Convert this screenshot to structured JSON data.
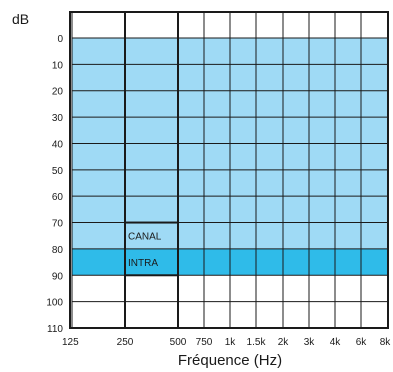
{
  "chart_data": {
    "type": "area",
    "ylabel": "dB",
    "xlabel": "Fréquence (Hz)",
    "y_inverted": true,
    "ylim": [
      110,
      0
    ],
    "y_ticks": [
      0,
      10,
      20,
      30,
      40,
      50,
      60,
      70,
      80,
      90,
      100,
      110
    ],
    "x_ticks": [
      "125",
      "250",
      "500",
      "750",
      "1k",
      "1.5k",
      "2k",
      "3k",
      "4k",
      "6k",
      "8k"
    ],
    "grid": true,
    "colors": {
      "light_band": "#9fdaf5",
      "dark_band": "#2fbbe9",
      "grid": "#1a1a1a"
    },
    "regions": [
      {
        "name": "fitting-range",
        "x_from": "125",
        "x_to": "8k",
        "y_from": 0,
        "y_to": 80,
        "color": "#9fdaf5"
      },
      {
        "name": "intra-band",
        "x_from": "125",
        "x_to": "8k",
        "y_from": 80,
        "y_to": 90,
        "color": "#2fbbe9"
      },
      {
        "name": "canal-box",
        "x_from": "250",
        "x_to": "500",
        "y_from": 70,
        "y_to": 90,
        "color": "none"
      }
    ],
    "annotations": [
      {
        "text": "CANAL",
        "x": "250",
        "y": 75
      },
      {
        "text": "INTRA",
        "x": "250",
        "y": 85
      }
    ]
  }
}
